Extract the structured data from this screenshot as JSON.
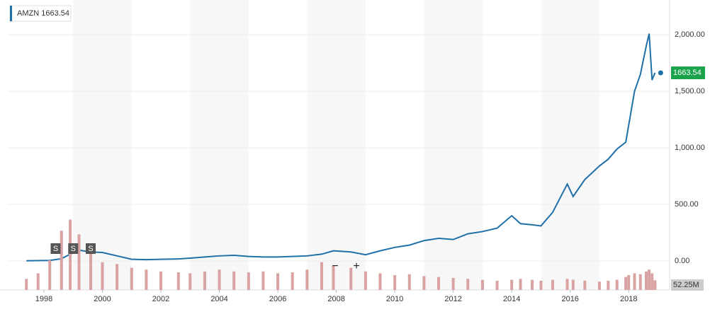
{
  "chart_data": {
    "type": "line",
    "legend_label": "AMZN 1663.54",
    "price_label": "1663.54",
    "volume_label": "52.25M",
    "split_markers": [
      "S",
      "S",
      "S"
    ],
    "zoom_buttons": [
      "−",
      "+"
    ],
    "x": [
      1997.4,
      1997.8,
      1998.2,
      1998.6,
      1998.9,
      1999.2,
      1999.6,
      2000.0,
      2000.5,
      2001.0,
      2001.5,
      2002.0,
      2002.6,
      2003.0,
      2003.5,
      2004.0,
      2004.5,
      2005.0,
      2005.5,
      2006.0,
      2006.5,
      2007.0,
      2007.5,
      2007.9,
      2008.5,
      2009.0,
      2009.5,
      2010.0,
      2010.5,
      2011.0,
      2011.5,
      2012.0,
      2012.5,
      2013.0,
      2013.5,
      2014.0,
      2014.3,
      2014.7,
      2015.0,
      2015.4,
      2015.9,
      2016.1,
      2016.5,
      2017.0,
      2017.3,
      2017.6,
      2017.9,
      2018.0,
      2018.2,
      2018.4,
      2018.6,
      2018.7,
      2018.8,
      2018.9
    ],
    "series": [
      {
        "name": "AMZN",
        "color": "#1f6fa8",
        "values": [
          2,
          3,
          5,
          20,
          60,
          95,
          80,
          75,
          45,
          15,
          12,
          15,
          18,
          25,
          35,
          45,
          50,
          40,
          35,
          35,
          40,
          45,
          60,
          90,
          80,
          55,
          90,
          120,
          140,
          180,
          200,
          190,
          240,
          260,
          290,
          400,
          330,
          320,
          310,
          430,
          680,
          570,
          720,
          840,
          900,
          990,
          1050,
          1200,
          1500,
          1650,
          1900,
          2010,
          1600,
          1663.54
        ]
      },
      {
        "name": "Volume",
        "color": "#d9a3a3",
        "axis": "y2",
        "values": [
          60,
          90,
          160,
          320,
          380,
          300,
          200,
          150,
          140,
          120,
          110,
          100,
          95,
          90,
          100,
          110,
          100,
          95,
          100,
          90,
          95,
          110,
          150,
          130,
          120,
          100,
          90,
          80,
          85,
          75,
          70,
          65,
          60,
          55,
          50,
          55,
          60,
          55,
          50,
          55,
          60,
          55,
          50,
          45,
          50,
          55,
          70,
          80,
          90,
          85,
          100,
          110,
          90,
          52.25
        ]
      }
    ],
    "xlim": [
      1996.74,
      2019.4
    ],
    "xticks": [
      1998,
      2000,
      2002,
      2004,
      2006,
      2008,
      2010,
      2012,
      2014,
      2016,
      2018
    ],
    "ylim": [
      -100,
      2220
    ],
    "yticks": [
      {
        "value": 0,
        "label": "0.00"
      },
      {
        "value": 500,
        "label": "500.00"
      },
      {
        "value": 1000,
        "label": "1,000.00"
      },
      {
        "value": 1500,
        "label": "1,500.00"
      },
      {
        "value": 2000,
        "label": "2,000.00"
      }
    ],
    "y2lim": [
      0,
      420
    ],
    "grid": true
  }
}
